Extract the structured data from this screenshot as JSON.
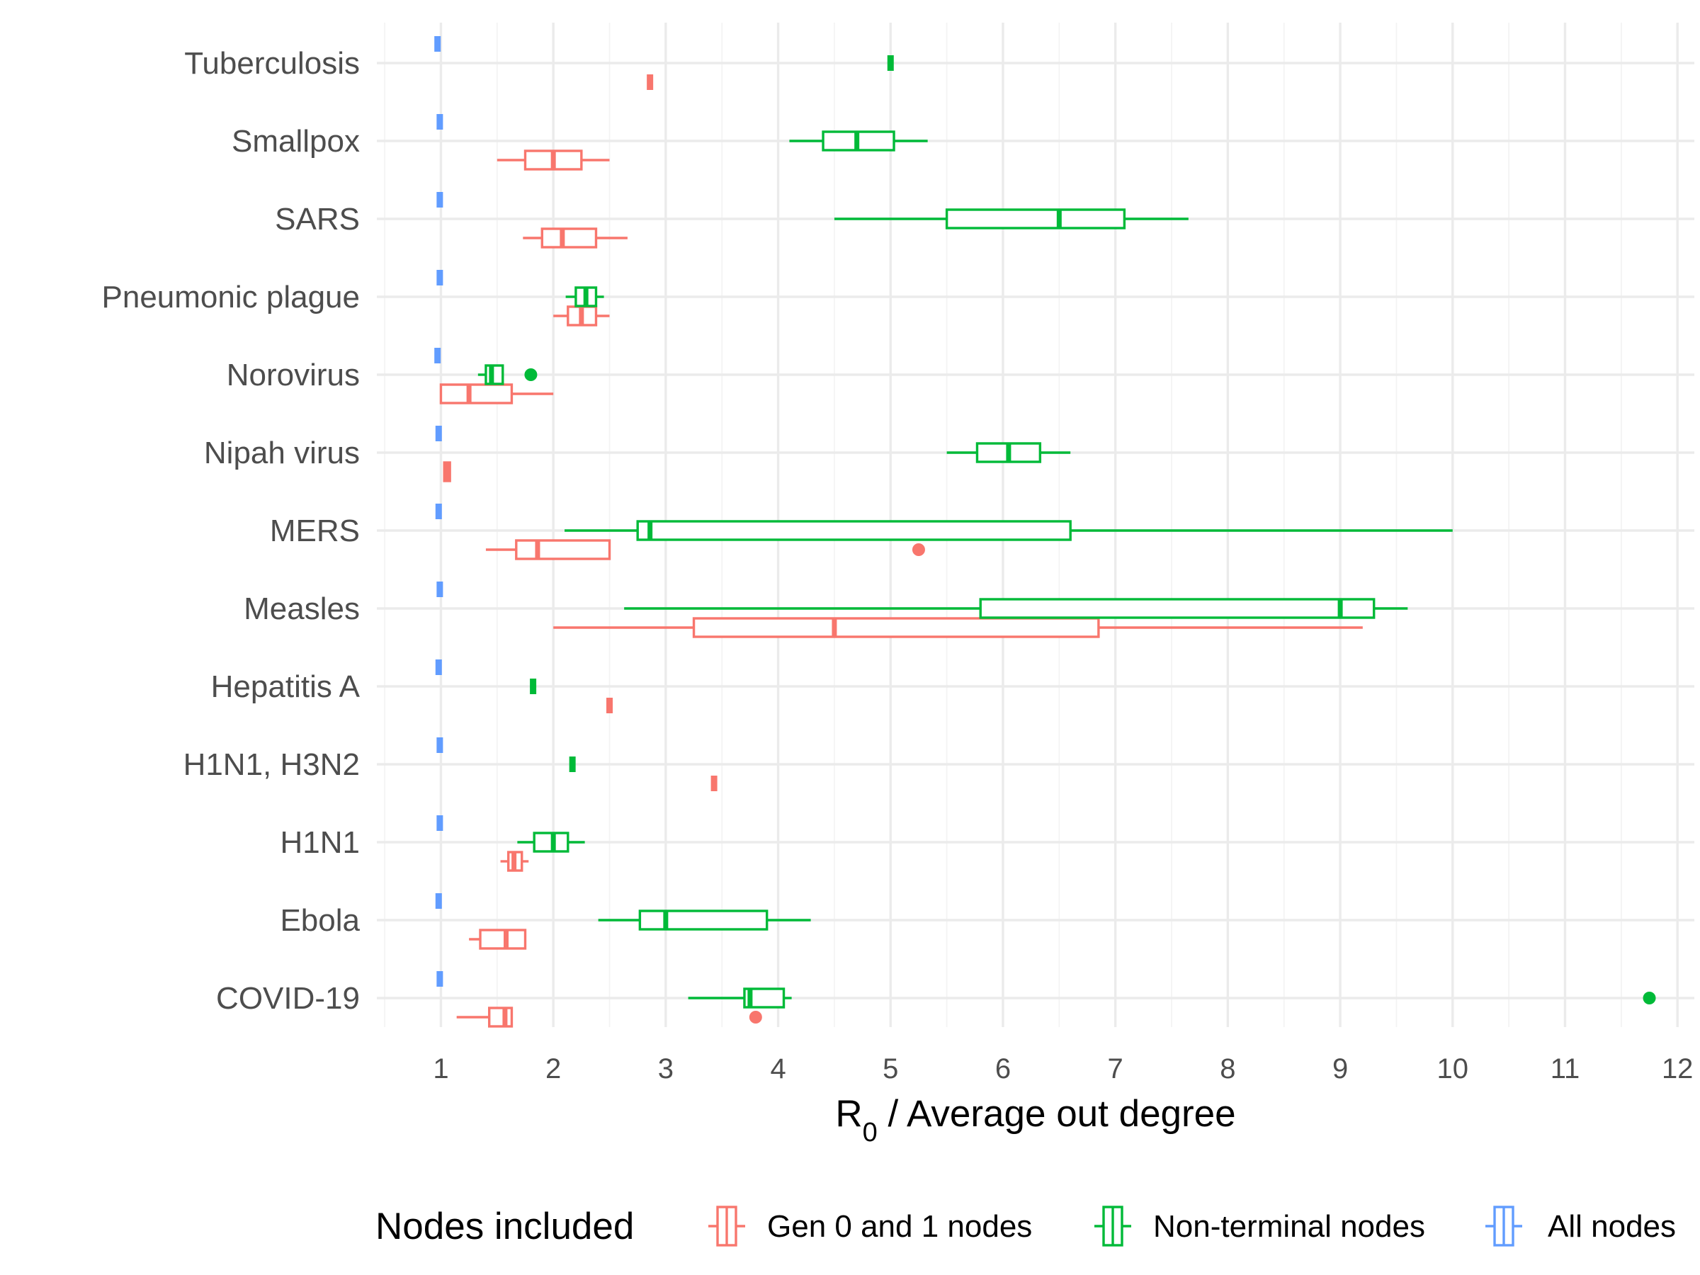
{
  "chart_data": {
    "type": "boxplot",
    "orientation": "horizontal",
    "xlabel_main": "R",
    "xlabel_sub": "0",
    "xlabel_rest": " / Average out degree",
    "xlim": [
      0.43,
      12.15
    ],
    "xticks": [
      1,
      2,
      3,
      4,
      5,
      6,
      7,
      8,
      9,
      10,
      11,
      12
    ],
    "categories": [
      "Tuberculosis",
      "Smallpox",
      "SARS",
      "Pneumonic plague",
      "Norovirus",
      "Nipah virus",
      "MERS",
      "Measles",
      "Hepatitis A",
      "H1N1, H3N2",
      "H1N1",
      "Ebola",
      "COVID-19"
    ],
    "grid": true,
    "legend": {
      "title": "Nodes included",
      "position": "bottom",
      "entries": [
        {
          "label": "Gen 0 and 1 nodes",
          "color": "#F8766D"
        },
        {
          "label": "Non-terminal nodes",
          "color": "#00BA38"
        },
        {
          "label": "All nodes",
          "color": "#619CFF"
        }
      ]
    },
    "series": [
      {
        "name": "Gen 0 and 1 nodes",
        "color": "#F8766D",
        "boxes": [
          {
            "category": "Tuberculosis",
            "min": 2.86,
            "q1": 2.86,
            "median": 2.86,
            "q3": 2.86,
            "max": 2.86,
            "outliers": []
          },
          {
            "category": "Smallpox",
            "min": 1.5,
            "q1": 1.75,
            "median": 2.0,
            "q3": 2.25,
            "max": 2.5,
            "outliers": []
          },
          {
            "category": "SARS",
            "min": 1.73,
            "q1": 1.9,
            "median": 2.08,
            "q3": 2.38,
            "max": 2.66,
            "outliers": []
          },
          {
            "category": "Pneumonic plague",
            "min": 2.0,
            "q1": 2.13,
            "median": 2.25,
            "q3": 2.38,
            "max": 2.5,
            "outliers": []
          },
          {
            "category": "Norovirus",
            "min": 1.0,
            "q1": 1.0,
            "median": 1.25,
            "q3": 1.63,
            "max": 2.0,
            "outliers": []
          },
          {
            "category": "Nipah virus",
            "min": 1.03,
            "q1": 1.03,
            "median": 1.06,
            "q3": 1.08,
            "max": 1.08,
            "outliers": []
          },
          {
            "category": "MERS",
            "min": 1.4,
            "q1": 1.67,
            "median": 1.86,
            "q3": 2.5,
            "max": 2.5,
            "outliers": [
              5.25
            ]
          },
          {
            "category": "Measles",
            "min": 2.0,
            "q1": 3.25,
            "median": 4.5,
            "q3": 6.85,
            "max": 9.2,
            "outliers": []
          },
          {
            "category": "Hepatitis A",
            "min": 2.5,
            "q1": 2.5,
            "median": 2.5,
            "q3": 2.5,
            "max": 2.5,
            "outliers": []
          },
          {
            "category": "H1N1, H3N2",
            "min": 3.43,
            "q1": 3.43,
            "median": 3.43,
            "q3": 3.43,
            "max": 3.43,
            "outliers": []
          },
          {
            "category": "H1N1",
            "min": 1.53,
            "q1": 1.6,
            "median": 1.65,
            "q3": 1.72,
            "max": 1.78,
            "outliers": []
          },
          {
            "category": "Ebola",
            "min": 1.25,
            "q1": 1.35,
            "median": 1.58,
            "q3": 1.75,
            "max": 1.75,
            "outliers": []
          },
          {
            "category": "COVID-19",
            "min": 1.14,
            "q1": 1.43,
            "median": 1.57,
            "q3": 1.63,
            "max": 1.63,
            "outliers": [
              3.8
            ]
          }
        ]
      },
      {
        "name": "Non-terminal nodes",
        "color": "#00BA38",
        "boxes": [
          {
            "category": "Tuberculosis",
            "min": 5.0,
            "q1": 5.0,
            "median": 5.0,
            "q3": 5.0,
            "max": 5.0,
            "outliers": []
          },
          {
            "category": "Smallpox",
            "min": 4.1,
            "q1": 4.4,
            "median": 4.7,
            "q3": 5.03,
            "max": 5.33,
            "outliers": []
          },
          {
            "category": "SARS",
            "min": 4.5,
            "q1": 5.5,
            "median": 6.5,
            "q3": 7.08,
            "max": 7.65,
            "outliers": []
          },
          {
            "category": "Pneumonic plague",
            "min": 2.11,
            "q1": 2.2,
            "median": 2.29,
            "q3": 2.38,
            "max": 2.45,
            "outliers": []
          },
          {
            "category": "Norovirus",
            "min": 1.33,
            "q1": 1.4,
            "median": 1.45,
            "q3": 1.55,
            "max": 1.55,
            "outliers": [
              1.8
            ]
          },
          {
            "category": "Nipah virus",
            "min": 5.5,
            "q1": 5.77,
            "median": 6.05,
            "q3": 6.33,
            "max": 6.6,
            "outliers": []
          },
          {
            "category": "MERS",
            "min": 2.1,
            "q1": 2.75,
            "median": 2.86,
            "q3": 6.6,
            "max": 10.0,
            "outliers": []
          },
          {
            "category": "Measles",
            "min": 2.63,
            "q1": 5.8,
            "median": 9.0,
            "q3": 9.3,
            "max": 9.6,
            "outliers": []
          },
          {
            "category": "Hepatitis A",
            "min": 1.82,
            "q1": 1.82,
            "median": 1.82,
            "q3": 1.82,
            "max": 1.82,
            "outliers": []
          },
          {
            "category": "H1N1, H3N2",
            "min": 2.17,
            "q1": 2.17,
            "median": 2.17,
            "q3": 2.17,
            "max": 2.17,
            "outliers": []
          },
          {
            "category": "H1N1",
            "min": 1.68,
            "q1": 1.83,
            "median": 2.0,
            "q3": 2.13,
            "max": 2.28,
            "outliers": []
          },
          {
            "category": "Ebola",
            "min": 2.4,
            "q1": 2.77,
            "median": 3.0,
            "q3": 3.9,
            "max": 4.29,
            "outliers": []
          },
          {
            "category": "COVID-19",
            "min": 3.2,
            "q1": 3.7,
            "median": 3.75,
            "q3": 4.05,
            "max": 4.12,
            "outliers": [
              11.75
            ]
          }
        ]
      },
      {
        "name": "All nodes",
        "color": "#619CFF",
        "boxes": [
          {
            "category": "Tuberculosis",
            "min": 0.97,
            "q1": 0.97,
            "median": 0.97,
            "q3": 0.97,
            "max": 0.97,
            "outliers": []
          },
          {
            "category": "Smallpox",
            "min": 0.99,
            "q1": 0.99,
            "median": 0.99,
            "q3": 0.99,
            "max": 0.99,
            "outliers": []
          },
          {
            "category": "SARS",
            "min": 0.99,
            "q1": 0.99,
            "median": 0.99,
            "q3": 0.99,
            "max": 0.99,
            "outliers": []
          },
          {
            "category": "Pneumonic plague",
            "min": 0.99,
            "q1": 0.99,
            "median": 0.99,
            "q3": 0.99,
            "max": 0.99,
            "outliers": []
          },
          {
            "category": "Norovirus",
            "min": 0.97,
            "q1": 0.97,
            "median": 0.97,
            "q3": 0.97,
            "max": 0.97,
            "outliers": []
          },
          {
            "category": "Nipah virus",
            "min": 0.98,
            "q1": 0.98,
            "median": 0.98,
            "q3": 0.98,
            "max": 0.98,
            "outliers": []
          },
          {
            "category": "MERS",
            "min": 0.98,
            "q1": 0.98,
            "median": 0.98,
            "q3": 0.98,
            "max": 0.98,
            "outliers": []
          },
          {
            "category": "Measles",
            "min": 0.99,
            "q1": 0.99,
            "median": 0.99,
            "q3": 0.99,
            "max": 0.99,
            "outliers": []
          },
          {
            "category": "Hepatitis A",
            "min": 0.98,
            "q1": 0.98,
            "median": 0.98,
            "q3": 0.98,
            "max": 0.98,
            "outliers": []
          },
          {
            "category": "H1N1, H3N2",
            "min": 0.99,
            "q1": 0.99,
            "median": 0.99,
            "q3": 0.99,
            "max": 0.99,
            "outliers": []
          },
          {
            "category": "H1N1",
            "min": 0.99,
            "q1": 0.99,
            "median": 0.99,
            "q3": 0.99,
            "max": 0.99,
            "outliers": []
          },
          {
            "category": "Ebola",
            "min": 0.98,
            "q1": 0.98,
            "median": 0.98,
            "q3": 0.98,
            "max": 0.98,
            "outliers": []
          },
          {
            "category": "COVID-19",
            "min": 0.99,
            "q1": 0.99,
            "median": 0.99,
            "q3": 0.99,
            "max": 0.99,
            "outliers": []
          }
        ]
      }
    ]
  }
}
